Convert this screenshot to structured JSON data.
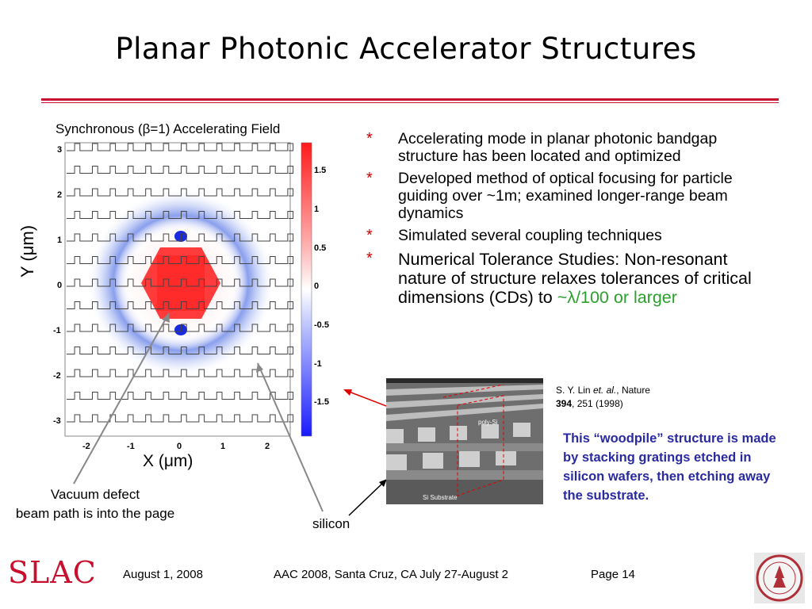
{
  "title": "Planar Photonic Accelerator Structures",
  "figure": {
    "caption": "Synchronous (β=1) Accelerating Field",
    "x_axis_label": "X (μm)",
    "y_axis_label": "Y (μm)",
    "x_ticks": [
      "-2",
      "-1",
      "0",
      "1",
      "2"
    ],
    "y_ticks": [
      "3",
      "2",
      "1",
      "0",
      "-1",
      "-2",
      "-3"
    ],
    "colorbar_ticks": [
      "1.5",
      "1",
      "0.5",
      "0",
      "-0.5",
      "-1",
      "-1.5"
    ]
  },
  "annotations": {
    "vacuum_line1": "Vacuum defect",
    "vacuum_line2": "beam path is into the page",
    "silicon": "silicon"
  },
  "bullets": [
    {
      "marker": "*",
      "text": "Accelerating mode in planar photonic bandgap structure has been located and optimized"
    },
    {
      "marker": "*",
      "text": "Developed method of optical focusing for particle guiding over ~1m; examined longer-range beam dynamics"
    },
    {
      "marker": "*",
      "text": "Simulated several coupling techniques"
    },
    {
      "marker": "*",
      "text": "Numerical Tolerance Studies: Non-resonant nature of structure relaxes tolerances of critical dimensions (CDs) to ",
      "highlight": "~λ/100 or larger"
    }
  ],
  "reference": {
    "authors": "S. Y. Lin ",
    "etal": "et. al.",
    "journal": ", Nature",
    "volume": "394",
    "pages": ", 251 (1998)"
  },
  "sem": {
    "label_polysi": "poly-Si",
    "label_substrate": "Si  Substrate"
  },
  "woodpile_note": "This “woodpile” structure is made by stacking gratings etched in silicon wafers, then etching away the substrate.",
  "footer": {
    "date": "August 1, 2008",
    "event": "AAC 2008, Santa Cruz, CA July 27-August 2",
    "page": "Page 14",
    "logo": "SLAC"
  },
  "colors": {
    "accent_red": "#c8102e",
    "note_blue": "#2a2aa0",
    "highlight_green": "#2ca02c"
  }
}
